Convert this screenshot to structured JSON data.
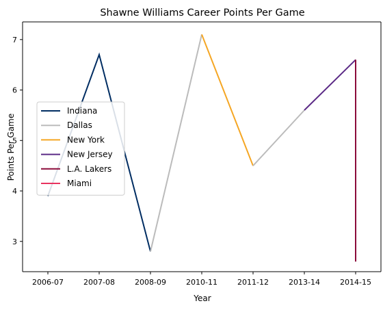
{
  "chart_data": {
    "type": "line",
    "title": "Shawne Williams Career Points Per Game",
    "xlabel": "Year",
    "ylabel": "Points Per Game",
    "categories": [
      "2006-07",
      "2007-08",
      "2008-09",
      "2010-11",
      "2011-12",
      "2013-14",
      "2014-15"
    ],
    "ylim": [
      2.4,
      7.35
    ],
    "yticks": [
      3,
      4,
      5,
      6,
      7
    ],
    "grid": false,
    "legend_position": "center-left",
    "series": [
      {
        "name": "Indiana",
        "color": "#002D62",
        "points": [
          [
            "2006-07",
            3.9
          ],
          [
            "2007-08",
            6.7
          ],
          [
            "2008-09",
            2.8
          ]
        ]
      },
      {
        "name": "Dallas",
        "color": "#BBBBBB",
        "points": [
          [
            "2008-09",
            2.8
          ],
          [
            "2010-11",
            7.1
          ]
        ]
      },
      {
        "name": "New York",
        "color": "#F5A623",
        "points": [
          [
            "2010-11",
            7.1
          ],
          [
            "2011-12",
            4.5
          ]
        ]
      },
      {
        "name": "Dallas",
        "color": "#BBBBBB",
        "points": [
          [
            "2011-12",
            4.5
          ],
          [
            "2013-14",
            5.6
          ]
        ]
      },
      {
        "name": "New Jersey",
        "color": "#5B2A86",
        "points": [
          [
            "2013-14",
            5.6
          ],
          [
            "2014-15",
            6.6
          ]
        ]
      },
      {
        "name": "L.A. Lakers",
        "color": "#8B0A3A",
        "points": [
          [
            "2014-15",
            6.6
          ],
          [
            "2014-15",
            2.6
          ]
        ]
      },
      {
        "name": "Miami",
        "color": "#E8335F",
        "points": []
      }
    ],
    "legend": [
      {
        "name": "Indiana",
        "color": "#002D62"
      },
      {
        "name": "Dallas",
        "color": "#BBBBBB"
      },
      {
        "name": "New York",
        "color": "#F5A623"
      },
      {
        "name": "New Jersey",
        "color": "#5B2A86"
      },
      {
        "name": "L.A. Lakers",
        "color": "#8B0A3A"
      },
      {
        "name": "Miami",
        "color": "#E8335F"
      }
    ]
  }
}
